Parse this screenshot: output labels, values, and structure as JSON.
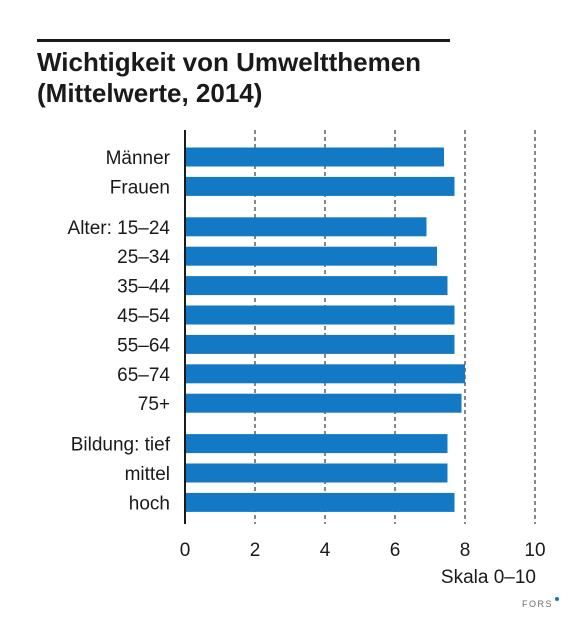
{
  "title": {
    "line1": "Wichtigkeit von Umweltthemen",
    "line2": "(Mittelwerte, 2014)"
  },
  "branding": {
    "logo_text": "FORS"
  },
  "colors": {
    "bar": "#1479c4",
    "text": "#1a1a1a",
    "grid": "#3a3a3a"
  },
  "chart_data": {
    "type": "bar",
    "orientation": "horizontal",
    "categories": [
      "Männer",
      "Frauen",
      "Alter: 15–24",
      "25–34",
      "35–44",
      "45–54",
      "55–64",
      "65–74",
      "75+",
      "Bildung: tief",
      "mittel",
      "hoch"
    ],
    "groups": [
      {
        "categories": [
          "Männer",
          "Frauen"
        ]
      },
      {
        "categories": [
          "Alter: 15–24",
          "25–34",
          "35–44",
          "45–54",
          "55–64",
          "65–74",
          "75+"
        ]
      },
      {
        "categories": [
          "Bildung: tief",
          "mittel",
          "hoch"
        ]
      }
    ],
    "values": [
      7.4,
      7.7,
      6.9,
      7.2,
      7.5,
      7.7,
      7.7,
      8.0,
      7.9,
      7.5,
      7.5,
      7.7
    ],
    "title": "Wichtigkeit von Umweltthemen (Mittelwerte, 2014)",
    "xlabel": "Skala 0–10",
    "ylabel": "",
    "xlim": [
      0,
      10
    ],
    "xticks": [
      "0",
      "2",
      "4",
      "6",
      "8",
      "10"
    ],
    "grid": "vertical dashed",
    "legend": "none"
  }
}
